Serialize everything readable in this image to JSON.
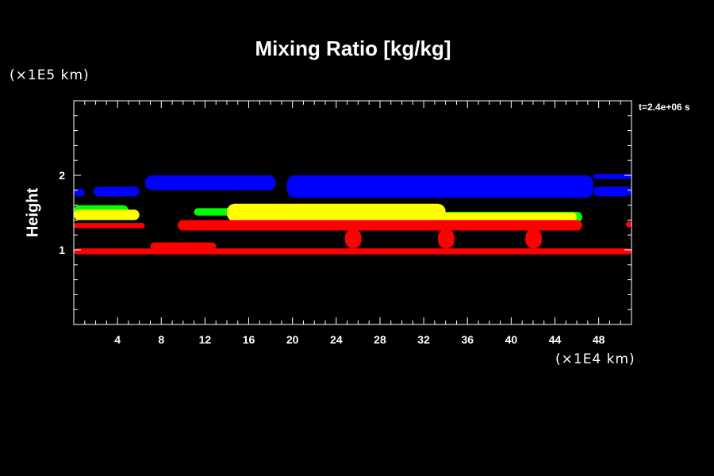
{
  "chart_data": {
    "type": "heatmap",
    "title": "Mixing Ratio [kg/kg]",
    "ylabel": "Height",
    "x_unit": "(×1E4 km)",
    "y_unit": "(×1E5 km)",
    "annotation": "t=2.4e+06 s",
    "xlim": [
      0,
      51
    ],
    "ylim": [
      0,
      3
    ],
    "x_ticks": [
      4,
      8,
      12,
      16,
      20,
      24,
      28,
      32,
      36,
      40,
      44,
      48
    ],
    "y_ticks": [
      1,
      2
    ],
    "background_color": "#000000",
    "regions": [
      {
        "color": "#0000ff",
        "x": [
          0.0,
          1.0
        ],
        "y": [
          1.72,
          1.82
        ]
      },
      {
        "color": "#0000ff",
        "x": [
          1.8,
          6.0
        ],
        "y": [
          1.72,
          1.85
        ]
      },
      {
        "color": "#0000ff",
        "x": [
          6.5,
          18.5
        ],
        "y": [
          1.8,
          2.0
        ]
      },
      {
        "color": "#0000ff",
        "x": [
          19.5,
          47.5
        ],
        "y": [
          1.7,
          2.0
        ]
      },
      {
        "color": "#0000ff",
        "x": [
          47.5,
          51.0
        ],
        "y": [
          1.72,
          1.85
        ]
      },
      {
        "color": "#0000ff",
        "x": [
          47.5,
          51.0
        ],
        "y": [
          1.95,
          2.02
        ]
      },
      {
        "color": "#00ff00",
        "x": [
          0.0,
          5.0
        ],
        "y": [
          1.45,
          1.6
        ]
      },
      {
        "color": "#00ff00",
        "x": [
          11.0,
          15.0
        ],
        "y": [
          1.46,
          1.56
        ]
      },
      {
        "color": "#00ff00",
        "x": [
          33.0,
          46.5
        ],
        "y": [
          1.37,
          1.51
        ]
      },
      {
        "color": "#ffff00",
        "x": [
          0.0,
          6.0
        ],
        "y": [
          1.4,
          1.54
        ]
      },
      {
        "color": "#ffff00",
        "x": [
          14.0,
          34.0
        ],
        "y": [
          1.38,
          1.62
        ]
      },
      {
        "color": "#ffff00",
        "x": [
          33.0,
          46.0
        ],
        "y": [
          1.38,
          1.5
        ]
      },
      {
        "color": "#ff0000",
        "x": [
          0.0,
          6.5
        ],
        "y": [
          1.29,
          1.36
        ]
      },
      {
        "color": "#ff0000",
        "x": [
          9.5,
          46.5
        ],
        "y": [
          1.26,
          1.4
        ]
      },
      {
        "color": "#ff0000",
        "x": [
          50.5,
          51.0
        ],
        "y": [
          1.3,
          1.38
        ]
      },
      {
        "color": "#ff0000",
        "x": [
          0.0,
          51.0
        ],
        "y": [
          0.94,
          1.02
        ]
      },
      {
        "color": "#ff0000",
        "x": [
          7.0,
          13.0
        ],
        "y": [
          1.0,
          1.1
        ]
      },
      {
        "color": "#ff0000",
        "x": [
          24.8,
          26.3
        ],
        "y": [
          1.02,
          1.28
        ]
      },
      {
        "color": "#ff0000",
        "x": [
          33.3,
          34.8
        ],
        "y": [
          1.02,
          1.28
        ]
      },
      {
        "color": "#ff0000",
        "x": [
          41.3,
          42.8
        ],
        "y": [
          1.02,
          1.28
        ]
      }
    ]
  }
}
